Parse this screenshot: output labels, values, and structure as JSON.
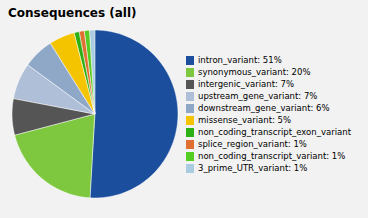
{
  "chart_data": {
    "type": "pie",
    "title": "Consequences (all)",
    "categories": [
      "intron_variant: 51%",
      "synonymous_variant: 20%",
      "intergenic_variant: 7%",
      "upstream_gene_variant: 7%",
      "downstream_gene_variant: 6%",
      "missense_variant: 5%",
      "non_coding_transcript_exon_variant",
      "splice_region_variant: 1%",
      "non_coding_transcript_variant: 1%",
      "3_prime_UTR_variant: 1%"
    ],
    "values": [
      51,
      20,
      7,
      7,
      6,
      5,
      1,
      1,
      1,
      1
    ],
    "colors": [
      "#1b4f9e",
      "#7dc83e",
      "#555555",
      "#b0bfd8",
      "#8fa8c8",
      "#f5c400",
      "#2db014",
      "#e07030",
      "#55cc22",
      "#aacce0"
    ]
  }
}
